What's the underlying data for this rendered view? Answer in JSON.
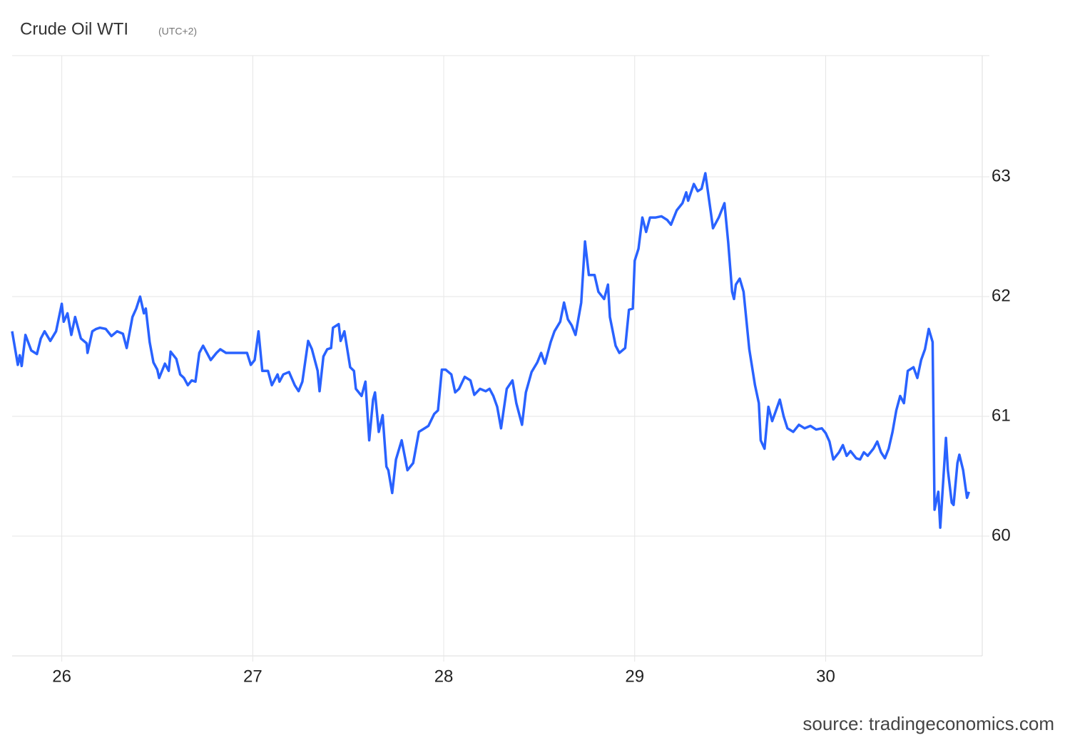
{
  "chart_data": {
    "type": "line",
    "title": "Crude Oil WTI",
    "subtitle": "(UTC+2)",
    "source": "source: tradingeconomics.com",
    "color": "#2962ff",
    "grid": true,
    "xlim": [
      25.74,
      30.82
    ],
    "ylim": [
      59,
      64
    ],
    "xticks": [
      26,
      27,
      28,
      29,
      30
    ],
    "yticks": [
      60,
      61,
      62,
      63
    ],
    "x": [
      25.74,
      25.77,
      25.78,
      25.79,
      25.81,
      25.84,
      25.87,
      25.89,
      25.91,
      25.94,
      25.97,
      26.0,
      26.01,
      26.03,
      26.05,
      26.07,
      26.1,
      26.13,
      26.135,
      26.16,
      26.18,
      26.2,
      26.23,
      26.26,
      26.29,
      26.32,
      26.34,
      26.37,
      26.39,
      26.41,
      26.43,
      26.44,
      26.46,
      26.48,
      26.5,
      26.51,
      26.54,
      26.56,
      26.57,
      26.6,
      26.62,
      26.64,
      26.66,
      26.68,
      26.7,
      26.72,
      26.74,
      26.76,
      26.78,
      26.81,
      26.83,
      26.86,
      26.91,
      26.97,
      26.99,
      27.01,
      27.03,
      27.05,
      27.08,
      27.1,
      27.13,
      27.14,
      27.16,
      27.19,
      27.22,
      27.24,
      27.26,
      27.29,
      27.31,
      27.34,
      27.35,
      27.37,
      27.39,
      27.41,
      27.42,
      27.45,
      27.46,
      27.48,
      27.51,
      27.53,
      27.54,
      27.57,
      27.59,
      27.61,
      27.63,
      27.64,
      27.66,
      27.68,
      27.7,
      27.71,
      27.73,
      27.75,
      27.78,
      27.81,
      27.84,
      27.87,
      27.9,
      27.92,
      27.95,
      27.97,
      27.99,
      28.01,
      28.04,
      28.06,
      28.08,
      28.11,
      28.14,
      28.16,
      28.19,
      28.22,
      28.24,
      28.26,
      28.28,
      28.3,
      28.33,
      28.36,
      28.38,
      28.41,
      28.43,
      28.46,
      28.49,
      28.51,
      28.53,
      28.54,
      28.56,
      28.58,
      28.61,
      28.63,
      28.65,
      28.67,
      28.69,
      28.72,
      28.74,
      28.76,
      28.79,
      28.81,
      28.84,
      28.86,
      28.87,
      28.9,
      28.92,
      28.95,
      28.97,
      28.99,
      29.0,
      29.02,
      29.04,
      29.06,
      29.08,
      29.11,
      29.14,
      29.17,
      29.19,
      29.22,
      29.25,
      29.27,
      29.28,
      29.31,
      29.33,
      29.35,
      29.37,
      29.4,
      29.41,
      29.44,
      29.47,
      29.49,
      29.51,
      29.52,
      29.53,
      29.55,
      29.57,
      29.6,
      29.63,
      29.65,
      29.66,
      29.68,
      29.7,
      29.72,
      29.74,
      29.76,
      29.78,
      29.8,
      29.83,
      29.86,
      29.89,
      29.92,
      29.95,
      29.98,
      30.0,
      30.02,
      30.04,
      30.07,
      30.09,
      30.11,
      30.13,
      30.16,
      30.18,
      30.2,
      30.22,
      30.25,
      30.27,
      30.29,
      30.31,
      30.33,
      30.35,
      30.37,
      30.39,
      30.41,
      30.43,
      30.46,
      30.48,
      30.5,
      30.52,
      30.54,
      30.56,
      30.57,
      30.59,
      30.6,
      30.63,
      30.64,
      30.66,
      30.67,
      30.69,
      30.7,
      30.72,
      30.74,
      30.75
    ],
    "values": [
      61.71,
      61.43,
      61.51,
      61.42,
      61.68,
      61.55,
      61.52,
      61.65,
      61.71,
      61.63,
      61.71,
      61.94,
      61.79,
      61.86,
      61.68,
      61.83,
      61.65,
      61.61,
      61.53,
      61.71,
      61.73,
      61.74,
      61.73,
      61.67,
      61.71,
      61.69,
      61.57,
      61.83,
      61.9,
      62.0,
      61.86,
      61.9,
      61.62,
      61.45,
      61.39,
      61.32,
      61.44,
      61.38,
      61.54,
      61.48,
      61.35,
      61.32,
      61.26,
      61.3,
      61.29,
      61.53,
      61.59,
      61.53,
      61.47,
      61.53,
      61.56,
      61.53,
      61.53,
      61.53,
      61.43,
      61.47,
      61.71,
      61.38,
      61.38,
      61.26,
      61.35,
      61.29,
      61.35,
      61.37,
      61.26,
      61.21,
      61.29,
      61.63,
      61.56,
      61.38,
      61.21,
      61.5,
      61.56,
      61.57,
      61.74,
      61.77,
      61.63,
      61.71,
      61.41,
      61.38,
      61.23,
      61.17,
      61.29,
      60.8,
      61.14,
      61.2,
      60.87,
      61.01,
      60.58,
      60.55,
      60.36,
      60.64,
      60.8,
      60.55,
      60.61,
      60.87,
      60.9,
      60.92,
      61.02,
      61.05,
      61.39,
      61.39,
      61.35,
      61.2,
      61.23,
      61.33,
      61.3,
      61.18,
      61.23,
      61.21,
      61.23,
      61.17,
      61.08,
      60.9,
      61.23,
      61.3,
      61.11,
      60.93,
      61.2,
      61.37,
      61.45,
      61.53,
      61.44,
      61.5,
      61.62,
      61.71,
      61.79,
      61.95,
      61.81,
      61.76,
      61.68,
      61.95,
      62.46,
      62.18,
      62.18,
      62.04,
      61.98,
      62.1,
      61.83,
      61.59,
      61.53,
      61.57,
      61.89,
      61.9,
      62.3,
      62.4,
      62.66,
      62.54,
      62.66,
      62.66,
      62.67,
      62.64,
      62.6,
      62.72,
      62.78,
      62.87,
      62.8,
      62.94,
      62.88,
      62.9,
      63.03,
      62.69,
      62.57,
      62.66,
      62.78,
      62.45,
      62.04,
      61.98,
      62.1,
      62.15,
      62.04,
      61.56,
      61.26,
      61.11,
      60.8,
      60.73,
      61.08,
      60.96,
      61.05,
      61.14,
      61.0,
      60.9,
      60.87,
      60.93,
      60.9,
      60.92,
      60.89,
      60.9,
      60.86,
      60.79,
      60.64,
      60.7,
      60.76,
      60.67,
      60.71,
      60.65,
      60.64,
      60.7,
      60.67,
      60.73,
      60.79,
      60.7,
      60.65,
      60.73,
      60.87,
      61.05,
      61.17,
      61.11,
      61.38,
      61.41,
      61.32,
      61.47,
      61.56,
      61.73,
      61.62,
      60.22,
      60.37,
      60.07,
      60.82,
      60.55,
      60.28,
      60.26,
      60.61,
      60.68,
      60.55,
      60.32,
      60.37
    ]
  }
}
